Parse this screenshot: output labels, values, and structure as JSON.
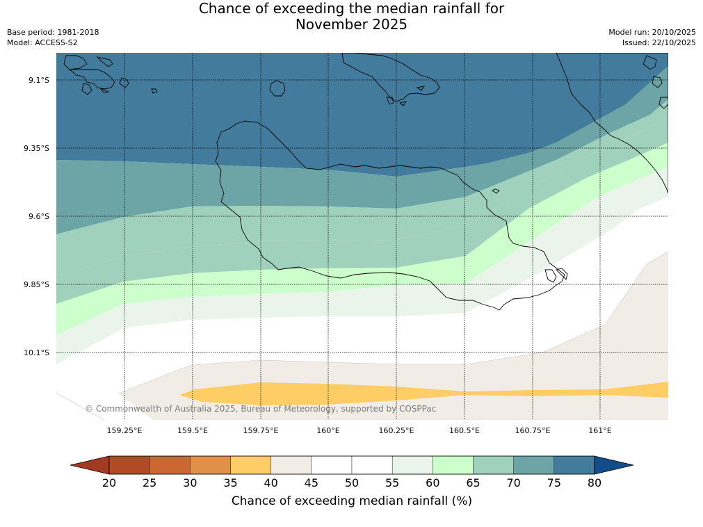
{
  "title_line1": "Chance of exceeding the median rainfall for",
  "title_line2": "November 2025",
  "base_period": "Base period: 1981-2018",
  "model": "Model: ACCESS-S2",
  "model_run": "Model run: 20/10/2025",
  "issued": "Issued: 22/10/2025",
  "copyright": "© Commonwealth of Australia 2025, Bureau of Meteorology, supported by COSPPac",
  "lat_labels": [
    "9.1°S",
    "9.35°S",
    "9.6°S",
    "9.85°S",
    "10.1°S"
  ],
  "lon_labels": [
    "159.25°E",
    "159.5°E",
    "159.75°E",
    "160°E",
    "160.25°E",
    "160.5°E",
    "160.75°E",
    "161°E"
  ],
  "colorbar": {
    "title": "Chance of exceeding median rainfall (%)",
    "ticks": [
      "20",
      "25",
      "30",
      "35",
      "40",
      "45",
      "50",
      "55",
      "60",
      "65",
      "70",
      "75",
      "80"
    ],
    "colors": [
      "#b34a26",
      "#cc6633",
      "#e09147",
      "#fecd66",
      "#f1ece6",
      "#ffffff",
      "#ffffff",
      "#eaf4ea",
      "#ccffcc",
      "#9fd1bc",
      "#6da5a7",
      "#427b9b"
    ],
    "under_color": "#a23b23",
    "over_color": "#134d89"
  },
  "chart_data": {
    "type": "heatmap",
    "variable": "Chance of exceeding median rainfall (%)",
    "bins": [
      {
        "range": [
          75,
          80
        ],
        "color": "#427b9b"
      },
      {
        "range": [
          70,
          75
        ],
        "color": "#6da5a7"
      },
      {
        "range": [
          65,
          70
        ],
        "color": "#9fd1bc"
      },
      {
        "range": [
          60,
          65
        ],
        "color": "#ccffcc"
      },
      {
        "range": [
          55,
          60
        ],
        "color": "#eaf4ea"
      },
      {
        "range": [
          45,
          55
        ],
        "color": "#ffffff"
      },
      {
        "range": [
          40,
          45
        ],
        "color": "#f1ece6"
      },
      {
        "range": [
          35,
          40
        ],
        "color": "#fecd66"
      }
    ],
    "over_color": "#134d89"
  }
}
